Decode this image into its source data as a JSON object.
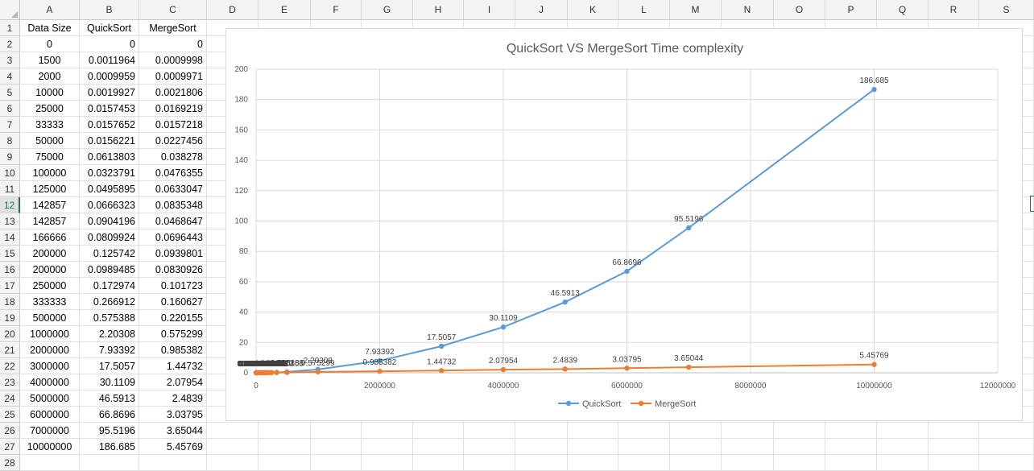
{
  "columns": [
    "A",
    "B",
    "C",
    "D",
    "E",
    "F",
    "G",
    "H",
    "I",
    "J",
    "K",
    "L",
    "M",
    "N",
    "O",
    "P",
    "Q",
    "R",
    "S"
  ],
  "rows": [
    "1",
    "2",
    "3",
    "4",
    "5",
    "6",
    "7",
    "8",
    "9",
    "10",
    "11",
    "12",
    "13",
    "14",
    "15",
    "16",
    "17",
    "18",
    "19",
    "20",
    "21",
    "22",
    "23",
    "24",
    "25",
    "26",
    "27",
    "28"
  ],
  "selected_row": "12",
  "table": {
    "headers": [
      "Data Size",
      "QuickSort",
      "MergeSort"
    ],
    "rows": [
      [
        "0",
        "0",
        "0"
      ],
      [
        "1500",
        "0.0011964",
        "0.0009998"
      ],
      [
        "2000",
        "0.0009959",
        "0.0009971"
      ],
      [
        "10000",
        "0.0019927",
        "0.0021806"
      ],
      [
        "25000",
        "0.0157453",
        "0.0169219"
      ],
      [
        "33333",
        "0.0157652",
        "0.0157218"
      ],
      [
        "50000",
        "0.0156221",
        "0.0227456"
      ],
      [
        "75000",
        "0.0613803",
        "0.038278"
      ],
      [
        "100000",
        "0.0323791",
        "0.0476355"
      ],
      [
        "125000",
        "0.0495895",
        "0.0633047"
      ],
      [
        "142857",
        "0.0666323",
        "0.0835348"
      ],
      [
        "142857",
        "0.0904196",
        "0.0468647"
      ],
      [
        "166666",
        "0.0809924",
        "0.0696443"
      ],
      [
        "200000",
        "0.125742",
        "0.0939801"
      ],
      [
        "200000",
        "0.0989485",
        "0.0830926"
      ],
      [
        "250000",
        "0.172974",
        "0.101723"
      ],
      [
        "333333",
        "0.266912",
        "0.160627"
      ],
      [
        "500000",
        "0.575388",
        "0.220155"
      ],
      [
        "1000000",
        "2.20308",
        "0.575299"
      ],
      [
        "2000000",
        "7.93392",
        "0.985382"
      ],
      [
        "3000000",
        "17.5057",
        "1.44732"
      ],
      [
        "4000000",
        "30.1109",
        "2.07954"
      ],
      [
        "5000000",
        "46.5913",
        "2.4839"
      ],
      [
        "6000000",
        "66.8696",
        "3.03795"
      ],
      [
        "7000000",
        "95.5196",
        "3.65044"
      ],
      [
        "10000000",
        "186.685",
        "5.45769"
      ]
    ]
  },
  "chart_data": {
    "type": "line",
    "title": "QuickSort VS MergeSort Time complexity",
    "xlim": [
      0,
      12000000
    ],
    "ylim": [
      0,
      200
    ],
    "x_ticks": [
      "0",
      "2000000",
      "4000000",
      "6000000",
      "8000000",
      "10000000",
      "12000000"
    ],
    "y_ticks": [
      "0",
      "20",
      "40",
      "60",
      "80",
      "100",
      "120",
      "140",
      "160",
      "180",
      "200"
    ],
    "x": [
      0,
      1500,
      2000,
      10000,
      25000,
      33333,
      50000,
      75000,
      100000,
      125000,
      142857,
      142857,
      166666,
      200000,
      200000,
      250000,
      333333,
      500000,
      1000000,
      2000000,
      3000000,
      4000000,
      5000000,
      6000000,
      7000000,
      10000000
    ],
    "series": [
      {
        "name": "QuickSort",
        "color": "#5b9bd5",
        "values": [
          0,
          0.0011964,
          0.0009959,
          0.0019927,
          0.0157453,
          0.0157652,
          0.0156221,
          0.0613803,
          0.0323791,
          0.0495895,
          0.0666323,
          0.0904196,
          0.0809924,
          0.125742,
          0.0989485,
          0.172974,
          0.266912,
          0.575388,
          2.20308,
          7.93392,
          17.5057,
          30.1109,
          46.5913,
          66.8696,
          95.5196,
          186.685
        ]
      },
      {
        "name": "MergeSort",
        "color": "#ed7d31",
        "values": [
          0,
          0.0009998,
          0.0009971,
          0.0021806,
          0.0169219,
          0.0157218,
          0.0227456,
          0.038278,
          0.0476355,
          0.0633047,
          0.0835348,
          0.0468647,
          0.0696443,
          0.0939801,
          0.0830926,
          0.101723,
          0.160627,
          0.220155,
          0.575299,
          0.985382,
          1.44732,
          2.07954,
          2.4839,
          3.03795,
          3.65044,
          5.45769
        ]
      }
    ],
    "legend_position": "bottom",
    "gridlines": true
  }
}
